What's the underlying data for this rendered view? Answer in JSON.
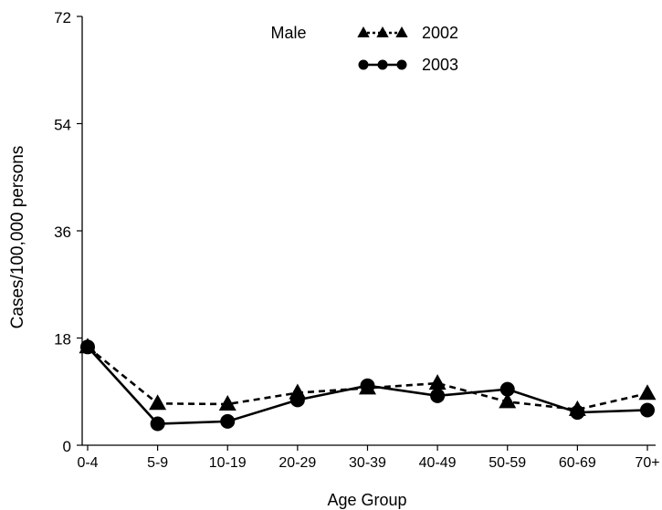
{
  "chart_data": {
    "type": "line",
    "title": "Male",
    "xlabel": "Age Group",
    "ylabel": "Cases/100,000 persons",
    "categories": [
      "0-4",
      "5-9",
      "10-19",
      "20-29",
      "30-39",
      "40-49",
      "50-59",
      "60-69",
      "70+"
    ],
    "ylim": [
      0,
      72
    ],
    "yticks": [
      0,
      18,
      36,
      54,
      72
    ],
    "grid": false,
    "legend": "top-center",
    "series": [
      {
        "name": "2002",
        "marker": "triangle",
        "line": "dashed",
        "color": "#000000",
        "values": [
          16.5,
          7.0,
          6.9,
          8.8,
          9.6,
          10.4,
          7.3,
          6.0,
          8.7
        ]
      },
      {
        "name": "2003",
        "marker": "circle",
        "line": "solid",
        "color": "#000000",
        "values": [
          16.5,
          3.6,
          4.0,
          7.6,
          10.0,
          8.3,
          9.4,
          5.5,
          5.9
        ]
      }
    ]
  }
}
